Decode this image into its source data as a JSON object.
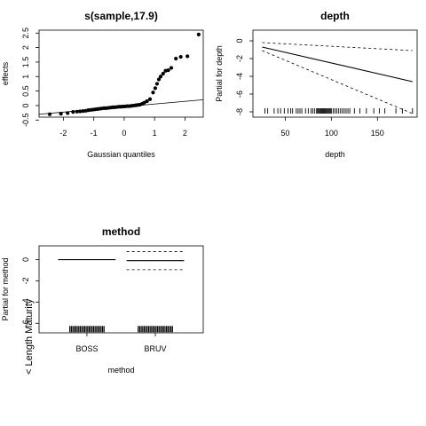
{
  "side_label": "< Length Maturity",
  "chart_data": [
    {
      "type": "scatter",
      "title": "s(sample,17.9)",
      "xlabel": "Gaussian quantiles",
      "ylabel": "effects",
      "xlim": [
        -2.8,
        2.6
      ],
      "ylim": [
        -0.4,
        2.6
      ],
      "xticks": [
        -2,
        -1,
        0,
        1,
        2
      ],
      "yticks": [
        -0.5,
        0,
        0.5,
        1,
        1.5,
        2,
        2.5
      ],
      "xtick_labels": [
        "-2",
        "-1",
        "0",
        "1",
        "2"
      ],
      "ytick_labels": [
        "-0.5",
        "0",
        "0.5",
        "1",
        "1.5",
        "2",
        "2.5"
      ],
      "reference_line": {
        "x": [
          -2.8,
          2.6
        ],
        "y": [
          -0.3,
          0.2
        ]
      },
      "points": {
        "x": [
          -2.45,
          -2.08,
          -1.86,
          -1.68,
          -1.55,
          -1.45,
          -1.35,
          -1.26,
          -1.18,
          -1.1,
          -1.02,
          -0.95,
          -0.88,
          -0.8,
          -0.73,
          -0.66,
          -0.59,
          -0.52,
          -0.45,
          -0.38,
          -0.31,
          -0.24,
          -0.17,
          -0.1,
          -0.03,
          0.03,
          0.1,
          0.17,
          0.24,
          0.31,
          0.38,
          0.45,
          0.52,
          0.59,
          0.66,
          0.75,
          0.85,
          0.95,
          1.02,
          1.08,
          1.14,
          1.2,
          1.28,
          1.36,
          1.45,
          1.55,
          1.7,
          1.86,
          2.08,
          2.45
        ],
        "y": [
          -0.3,
          -0.28,
          -0.26,
          -0.22,
          -0.21,
          -0.2,
          -0.19,
          -0.18,
          -0.16,
          -0.15,
          -0.14,
          -0.13,
          -0.12,
          -0.11,
          -0.1,
          -0.09,
          -0.09,
          -0.08,
          -0.07,
          -0.06,
          -0.06,
          -0.05,
          -0.04,
          -0.04,
          -0.03,
          -0.03,
          -0.02,
          -0.02,
          -0.01,
          0.0,
          0.01,
          0.02,
          0.03,
          0.06,
          0.1,
          0.15,
          0.22,
          0.45,
          0.6,
          0.75,
          0.9,
          1.0,
          1.1,
          1.2,
          1.22,
          1.3,
          1.62,
          1.68,
          1.7,
          2.45
        ]
      }
    },
    {
      "type": "line",
      "title": "depth",
      "xlabel": "depth",
      "ylabel": "Partial for depth",
      "xlim": [
        15,
        193
      ],
      "ylim": [
        -8.6,
        1.2
      ],
      "xticks": [
        50,
        100,
        150
      ],
      "yticks": [
        -8,
        -6,
        -4,
        -2,
        0
      ],
      "xtick_labels": [
        "50",
        "100",
        "150"
      ],
      "ytick_labels": [
        "-8",
        "-6",
        "-4",
        "-2",
        "0"
      ],
      "series": [
        {
          "style": "solid",
          "x": [
            25,
            188
          ],
          "y": [
            -0.7,
            -4.6
          ]
        },
        {
          "style": "dashed",
          "x": [
            25,
            188
          ],
          "y": [
            -0.2,
            -1.1
          ]
        },
        {
          "style": "dashed",
          "x": [
            25,
            188
          ],
          "y": [
            -1.1,
            -8.2
          ]
        }
      ],
      "rug": [
        28,
        31,
        38,
        42,
        45,
        49,
        53,
        56,
        58,
        62,
        64,
        66,
        68,
        72,
        75,
        78,
        80,
        82,
        84,
        85,
        86,
        87,
        88,
        89,
        90,
        91,
        92,
        93,
        94,
        95,
        96,
        97,
        98,
        99,
        100,
        102,
        104,
        106,
        108,
        110,
        112,
        114,
        116,
        118,
        120,
        125,
        131,
        138,
        146,
        152,
        158,
        170,
        177,
        188
      ]
    },
    {
      "type": "bar",
      "title": "method",
      "xlabel": "method",
      "ylabel": "Partial for method",
      "categories": [
        "BOSS",
        "BRUV"
      ],
      "xlim": [
        0.3,
        2.7
      ],
      "ylim": [
        -6.9,
        1.3
      ],
      "yticks": [
        -6,
        -4,
        -2,
        0
      ],
      "ytick_labels": [
        "-6",
        "-4",
        "-2",
        "0"
      ],
      "levels": [
        {
          "fit": 0.0,
          "upper": 0.0,
          "lower": 0.0
        },
        {
          "fit": -0.1,
          "upper": 0.75,
          "lower": -0.95
        }
      ],
      "rug_y": -6.55
    }
  ]
}
